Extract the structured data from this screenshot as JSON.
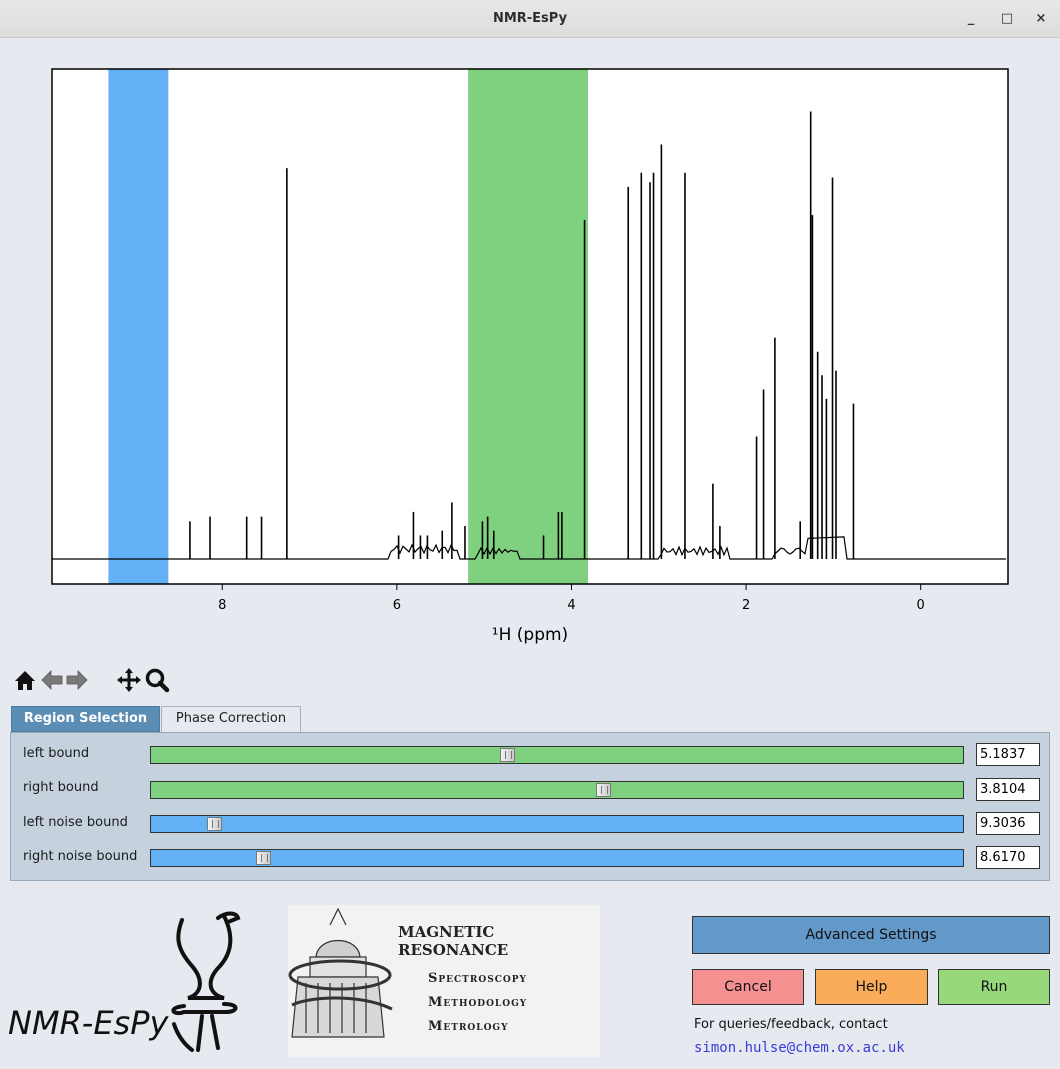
{
  "window": {
    "title": "NMR-EsPy",
    "minimize_label": "_",
    "maximize_label": "□",
    "close_label": "×"
  },
  "chart_data": {
    "type": "line",
    "title": "",
    "xlabel": "¹H (ppm)",
    "ylabel": "",
    "xlim": [
      9.95,
      -1.0
    ],
    "x_reversed": true,
    "grid": false,
    "xticks": [
      "8",
      "6",
      "4",
      "2",
      "0"
    ],
    "xtick_values": [
      8,
      6,
      4,
      2,
      0
    ],
    "regions": [
      {
        "kind": "noise",
        "from": 9.3036,
        "to": 8.617,
        "color": "#63b0f6"
      },
      {
        "kind": "signal",
        "from": 5.1837,
        "to": 3.8104,
        "color": "#7fd17f"
      }
    ],
    "peaks": [
      {
        "ppm": 8.37,
        "height": 0.08
      },
      {
        "ppm": 8.14,
        "height": 0.09
      },
      {
        "ppm": 7.72,
        "height": 0.09
      },
      {
        "ppm": 7.55,
        "height": 0.09
      },
      {
        "ppm": 7.26,
        "height": 0.83
      },
      {
        "ppm": 5.98,
        "height": 0.05
      },
      {
        "ppm": 5.81,
        "height": 0.1
      },
      {
        "ppm": 5.73,
        "height": 0.05
      },
      {
        "ppm": 5.65,
        "height": 0.05
      },
      {
        "ppm": 5.48,
        "height": 0.06
      },
      {
        "ppm": 5.37,
        "height": 0.12
      },
      {
        "ppm": 5.22,
        "height": 0.07
      },
      {
        "ppm": 5.02,
        "height": 0.08
      },
      {
        "ppm": 4.96,
        "height": 0.09
      },
      {
        "ppm": 4.89,
        "height": 0.06
      },
      {
        "ppm": 4.32,
        "height": 0.05
      },
      {
        "ppm": 4.15,
        "height": 0.1
      },
      {
        "ppm": 4.11,
        "height": 0.1
      },
      {
        "ppm": 3.85,
        "height": 0.72
      },
      {
        "ppm": 3.35,
        "height": 0.79
      },
      {
        "ppm": 3.2,
        "height": 0.82
      },
      {
        "ppm": 3.1,
        "height": 0.8
      },
      {
        "ppm": 3.06,
        "height": 0.82
      },
      {
        "ppm": 2.97,
        "height": 0.88
      },
      {
        "ppm": 2.7,
        "height": 0.82
      },
      {
        "ppm": 2.38,
        "height": 0.16
      },
      {
        "ppm": 2.3,
        "height": 0.07
      },
      {
        "ppm": 1.88,
        "height": 0.26
      },
      {
        "ppm": 1.8,
        "height": 0.36
      },
      {
        "ppm": 1.67,
        "height": 0.47
      },
      {
        "ppm": 1.38,
        "height": 0.08
      },
      {
        "ppm": 1.26,
        "height": 0.95
      },
      {
        "ppm": 1.24,
        "height": 0.73
      },
      {
        "ppm": 1.18,
        "height": 0.44
      },
      {
        "ppm": 1.13,
        "height": 0.39
      },
      {
        "ppm": 1.08,
        "height": 0.34
      },
      {
        "ppm": 1.01,
        "height": 0.81
      },
      {
        "ppm": 0.97,
        "height": 0.4
      },
      {
        "ppm": 0.77,
        "height": 0.33
      }
    ]
  },
  "toolbar": {
    "icons": [
      "home-icon",
      "back-arrow-icon",
      "forward-arrow-icon",
      "pan-icon",
      "zoom-icon"
    ]
  },
  "tabs": {
    "region": "Region Selection",
    "phase": "Phase Correction"
  },
  "region_selection": {
    "rows": [
      {
        "label": "left bound",
        "value": "5.1837",
        "fraction": 0.438,
        "color": "#7fd17f"
      },
      {
        "label": "right bound",
        "value": "3.8104",
        "fraction": 0.558,
        "color": "#7fd17f"
      },
      {
        "label": "left noise bound",
        "value": "9.3036",
        "fraction": 0.07,
        "color": "#63b0f6"
      },
      {
        "label": "right noise bound",
        "value": "8.6170",
        "fraction": 0.132,
        "color": "#63b0f6"
      }
    ]
  },
  "logos": {
    "espy_text": "NMR-EsPy",
    "mr_title": "MAGNETIC RESONANCE",
    "mr_line1": "Spectroscopy",
    "mr_line2": "Methodology",
    "mr_line3": "Metrology"
  },
  "buttons": {
    "advanced": "Advanced Settings",
    "cancel": "Cancel",
    "help": "Help",
    "run": "Run"
  },
  "contact": {
    "text": "For queries/feedback, contact",
    "email": "simon.hulse@chem.ox.ac.uk"
  }
}
